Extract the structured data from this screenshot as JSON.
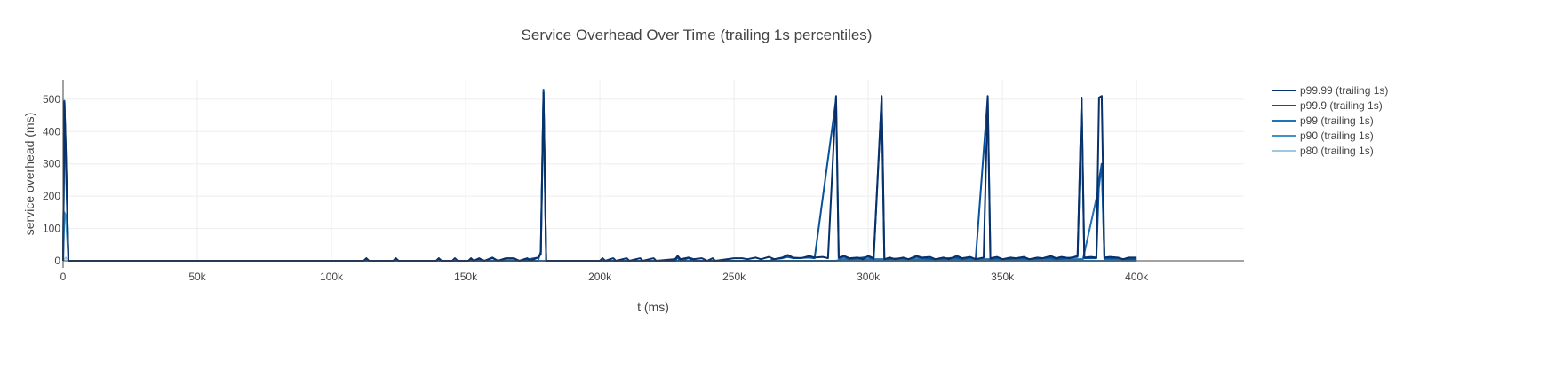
{
  "chart_data": {
    "type": "line",
    "title": "Service Overhead Over Time (trailing 1s percentiles)",
    "xlabel": "t (ms)",
    "ylabel": "service overhead (ms)",
    "xlim": [
      0,
      440000
    ],
    "ylim": [
      0,
      560
    ],
    "x_ticks": [
      0,
      50000,
      100000,
      150000,
      200000,
      250000,
      300000,
      350000,
      400000
    ],
    "x_tick_labels": [
      "0",
      "50k",
      "100k",
      "150k",
      "200k",
      "250k",
      "300k",
      "350k",
      "400k"
    ],
    "y_ticks": [
      0,
      100,
      200,
      300,
      400,
      500
    ],
    "y_tick_labels": [
      "0",
      "100",
      "200",
      "300",
      "400",
      "500"
    ],
    "grid": true,
    "legend_position": "top-right",
    "series": [
      {
        "name": "p99.99 (trailing 1s)",
        "color": "#08306b",
        "points": [
          [
            0,
            0
          ],
          [
            500,
            490
          ],
          [
            1000,
            350
          ],
          [
            2000,
            0
          ],
          [
            112000,
            0
          ],
          [
            113000,
            8
          ],
          [
            114000,
            0
          ],
          [
            123000,
            0
          ],
          [
            124000,
            8
          ],
          [
            125000,
            0
          ],
          [
            139000,
            0
          ],
          [
            140000,
            8
          ],
          [
            141000,
            0
          ],
          [
            145000,
            0
          ],
          [
            146000,
            8
          ],
          [
            147000,
            0
          ],
          [
            151000,
            0
          ],
          [
            152000,
            8
          ],
          [
            153000,
            0
          ],
          [
            155000,
            8
          ],
          [
            157000,
            0
          ],
          [
            160000,
            10
          ],
          [
            161000,
            5
          ],
          [
            162000,
            0
          ],
          [
            165000,
            8
          ],
          [
            168000,
            8
          ],
          [
            170000,
            0
          ],
          [
            173000,
            8
          ],
          [
            174000,
            0
          ],
          [
            177000,
            10
          ],
          [
            178000,
            20
          ],
          [
            179000,
            520
          ],
          [
            180000,
            0
          ],
          [
            200000,
            0
          ],
          [
            201000,
            8
          ],
          [
            202000,
            0
          ],
          [
            205000,
            8
          ],
          [
            206000,
            0
          ],
          [
            210000,
            8
          ],
          [
            211000,
            0
          ],
          [
            215000,
            8
          ],
          [
            216000,
            0
          ],
          [
            220000,
            8
          ],
          [
            221000,
            0
          ],
          [
            228000,
            5
          ],
          [
            229000,
            15
          ],
          [
            230000,
            5
          ],
          [
            233000,
            10
          ],
          [
            235000,
            5
          ],
          [
            238000,
            8
          ],
          [
            240000,
            0
          ],
          [
            242000,
            8
          ],
          [
            243000,
            0
          ],
          [
            250000,
            8
          ],
          [
            253000,
            8
          ],
          [
            255000,
            5
          ],
          [
            258000,
            10
          ],
          [
            260000,
            5
          ],
          [
            263000,
            12
          ],
          [
            265000,
            5
          ],
          [
            268000,
            10
          ],
          [
            270000,
            18
          ],
          [
            272000,
            10
          ],
          [
            275000,
            8
          ],
          [
            278000,
            15
          ],
          [
            280000,
            10
          ],
          [
            283000,
            12
          ],
          [
            285000,
            8
          ],
          [
            288000,
            510
          ],
          [
            289000,
            10
          ],
          [
            291000,
            15
          ],
          [
            293000,
            8
          ],
          [
            296000,
            10
          ],
          [
            298000,
            5
          ],
          [
            300000,
            15
          ],
          [
            302000,
            8
          ],
          [
            305000,
            510
          ],
          [
            306000,
            5
          ],
          [
            308000,
            10
          ],
          [
            310000,
            5
          ],
          [
            313000,
            10
          ],
          [
            315000,
            5
          ],
          [
            318000,
            15
          ],
          [
            320000,
            10
          ],
          [
            323000,
            12
          ],
          [
            325000,
            5
          ],
          [
            328000,
            10
          ],
          [
            330000,
            5
          ],
          [
            333000,
            15
          ],
          [
            335000,
            8
          ],
          [
            338000,
            12
          ],
          [
            340000,
            5
          ],
          [
            343000,
            10
          ],
          [
            344500,
            510
          ],
          [
            345500,
            8
          ],
          [
            348000,
            12
          ],
          [
            350000,
            5
          ],
          [
            353000,
            10
          ],
          [
            355000,
            8
          ],
          [
            358000,
            12
          ],
          [
            360000,
            5
          ],
          [
            363000,
            10
          ],
          [
            365000,
            8
          ],
          [
            368000,
            15
          ],
          [
            370000,
            8
          ],
          [
            372000,
            12
          ],
          [
            375000,
            8
          ],
          [
            378000,
            15
          ],
          [
            379500,
            505
          ],
          [
            380500,
            10
          ],
          [
            383000,
            12
          ],
          [
            385000,
            10
          ],
          [
            386000,
            505
          ],
          [
            387000,
            510
          ],
          [
            388000,
            10
          ],
          [
            390000,
            12
          ],
          [
            393000,
            10
          ],
          [
            395000,
            5
          ],
          [
            397000,
            10
          ],
          [
            400000,
            10
          ]
        ]
      },
      {
        "name": "p99.9 (trailing 1s)",
        "color": "#08519c",
        "points": [
          [
            0,
            0
          ],
          [
            500,
            495
          ],
          [
            1000,
            340
          ],
          [
            2000,
            0
          ],
          [
            112000,
            0
          ],
          [
            113000,
            6
          ],
          [
            114000,
            0
          ],
          [
            123000,
            0
          ],
          [
            124000,
            6
          ],
          [
            125000,
            0
          ],
          [
            139000,
            0
          ],
          [
            140000,
            6
          ],
          [
            141000,
            0
          ],
          [
            151000,
            0
          ],
          [
            152000,
            6
          ],
          [
            153000,
            0
          ],
          [
            155000,
            6
          ],
          [
            157000,
            0
          ],
          [
            160000,
            8
          ],
          [
            162000,
            0
          ],
          [
            165000,
            6
          ],
          [
            168000,
            6
          ],
          [
            170000,
            0
          ],
          [
            177000,
            10
          ],
          [
            178000,
            25
          ],
          [
            179000,
            525
          ],
          [
            180000,
            0
          ],
          [
            228000,
            0
          ],
          [
            229000,
            10
          ],
          [
            230000,
            0
          ],
          [
            233000,
            8
          ],
          [
            235000,
            0
          ],
          [
            263000,
            0
          ],
          [
            265000,
            5
          ],
          [
            268000,
            8
          ],
          [
            270000,
            12
          ],
          [
            272000,
            8
          ],
          [
            278000,
            10
          ],
          [
            280000,
            8
          ],
          [
            288000,
            500
          ],
          [
            289000,
            8
          ],
          [
            291000,
            12
          ],
          [
            293000,
            5
          ],
          [
            300000,
            12
          ],
          [
            302000,
            5
          ],
          [
            305000,
            505
          ],
          [
            306000,
            5
          ],
          [
            313000,
            8
          ],
          [
            315000,
            5
          ],
          [
            318000,
            12
          ],
          [
            320000,
            8
          ],
          [
            325000,
            5
          ],
          [
            333000,
            10
          ],
          [
            335000,
            5
          ],
          [
            338000,
            10
          ],
          [
            340000,
            5
          ],
          [
            344500,
            505
          ],
          [
            345500,
            5
          ],
          [
            348000,
            8
          ],
          [
            350000,
            5
          ],
          [
            358000,
            8
          ],
          [
            360000,
            5
          ],
          [
            368000,
            10
          ],
          [
            370000,
            5
          ],
          [
            378000,
            12
          ],
          [
            379500,
            500
          ],
          [
            380500,
            8
          ],
          [
            385000,
            8
          ],
          [
            386000,
            250
          ],
          [
            387000,
            300
          ],
          [
            388000,
            8
          ],
          [
            393000,
            8
          ],
          [
            395000,
            5
          ],
          [
            400000,
            5
          ]
        ]
      },
      {
        "name": "p99 (trailing 1s)",
        "color": "#2171b5",
        "points": [
          [
            0,
            0
          ],
          [
            500,
            490
          ],
          [
            1000,
            300
          ],
          [
            2000,
            0
          ],
          [
            177000,
            0
          ],
          [
            178000,
            30
          ],
          [
            179000,
            530
          ],
          [
            180000,
            0
          ],
          [
            229000,
            0
          ],
          [
            230000,
            5
          ],
          [
            231000,
            0
          ],
          [
            288000,
            0
          ],
          [
            290000,
            5
          ],
          [
            300000,
            5
          ],
          [
            320000,
            5
          ],
          [
            330000,
            5
          ],
          [
            340000,
            5
          ],
          [
            350000,
            5
          ],
          [
            360000,
            5
          ],
          [
            370000,
            5
          ],
          [
            380000,
            5
          ],
          [
            386000,
            230
          ],
          [
            387000,
            300
          ],
          [
            388000,
            5
          ],
          [
            400000,
            5
          ]
        ]
      },
      {
        "name": "p90 (trailing 1s)",
        "color": "#4292c6",
        "points": [
          [
            0,
            0
          ],
          [
            500,
            150
          ],
          [
            1000,
            140
          ],
          [
            2000,
            0
          ],
          [
            400000,
            0
          ]
        ]
      },
      {
        "name": "p80 (trailing 1s)",
        "color": "#9ecae1",
        "points": [
          [
            0,
            0
          ],
          [
            1000,
            10
          ],
          [
            2000,
            0
          ],
          [
            400000,
            0
          ]
        ]
      }
    ]
  }
}
